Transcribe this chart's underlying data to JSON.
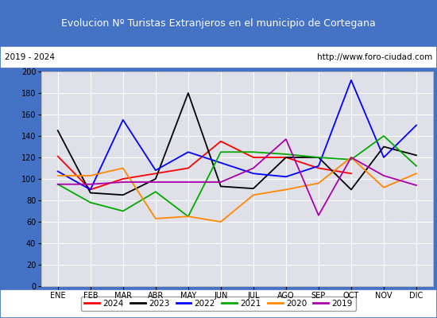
{
  "title": "Evolucion Nº Turistas Extranjeros en el municipio de Cortegana",
  "subtitle_left": "2019 - 2024",
  "subtitle_right": "http://www.foro-ciudad.com",
  "months": [
    "ENE",
    "FEB",
    "MAR",
    "ABR",
    "MAY",
    "JUN",
    "JUL",
    "AGO",
    "SEP",
    "OCT",
    "NOV",
    "DIC"
  ],
  "series": {
    "2024": [
      121,
      90,
      100,
      105,
      110,
      135,
      120,
      120,
      110,
      105,
      null,
      null
    ],
    "2023": [
      145,
      87,
      85,
      100,
      180,
      93,
      91,
      120,
      120,
      90,
      130,
      122
    ],
    "2022": [
      107,
      90,
      155,
      108,
      125,
      115,
      105,
      102,
      112,
      192,
      120,
      150
    ],
    "2021": [
      95,
      78,
      70,
      88,
      65,
      125,
      125,
      123,
      120,
      118,
      140,
      112
    ],
    "2020": [
      103,
      103,
      110,
      63,
      65,
      60,
      85,
      90,
      96,
      120,
      92,
      105
    ],
    "2019": [
      95,
      95,
      97,
      97,
      97,
      97,
      110,
      137,
      66,
      120,
      103,
      94
    ]
  },
  "colors": {
    "2024": "#ff0000",
    "2023": "#000000",
    "2022": "#0000ff",
    "2021": "#00aa00",
    "2020": "#ff8800",
    "2019": "#aa00aa"
  },
  "ylim": [
    0,
    200
  ],
  "yticks": [
    0,
    20,
    40,
    60,
    80,
    100,
    120,
    140,
    160,
    180,
    200
  ],
  "title_bg_color": "#4472c4",
  "title_text_color": "#ffffff",
  "plot_bg_color": "#e0e0e8",
  "grid_color": "#ffffff",
  "border_color": "#4472c4",
  "title_fontsize": 9,
  "subtitle_fontsize": 7.5,
  "axis_fontsize": 7,
  "legend_fontsize": 7.5
}
